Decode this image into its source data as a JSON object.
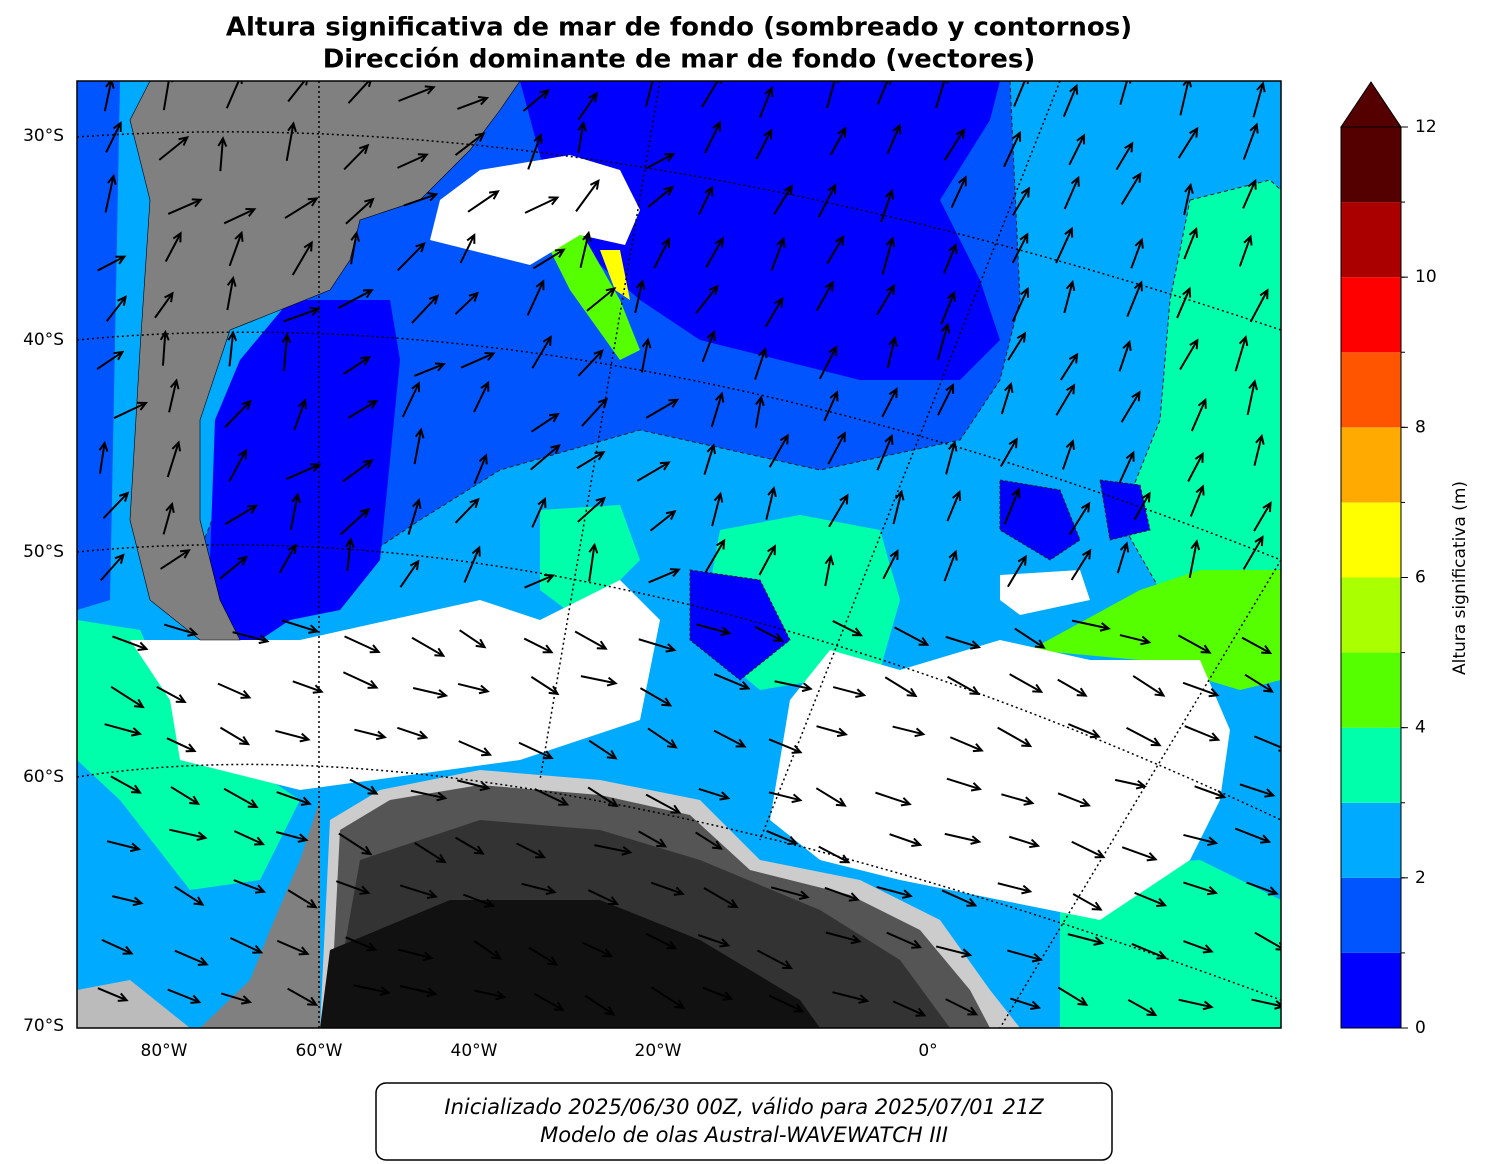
{
  "title": [
    "Altura significativa de mar de fondo (sombreado y contornos)",
    "Dirección dominante de mar de fondo (vectores)"
  ],
  "map": {
    "lat_labels": [
      "30°S",
      "40°S",
      "50°S",
      "60°S",
      "70°S"
    ],
    "lon_labels": [
      "80°W",
      "60°W",
      "40°W",
      "20°W",
      "0°"
    ]
  },
  "colorbar": {
    "label": "Altura significativa (m)",
    "levels": [
      0,
      1,
      2,
      3,
      4,
      5,
      6,
      7,
      8,
      9,
      10,
      11,
      12
    ],
    "colors": [
      "#0000ff",
      "#0055ff",
      "#00aaff",
      "#00ffaa",
      "#55ff00",
      "#aaff00",
      "#ffff00",
      "#ffaa00",
      "#ff5500",
      "#ff0000",
      "#aa0000",
      "#550000"
    ],
    "extend_color": "#550000",
    "ticks": [
      0,
      2,
      4,
      6,
      8,
      10,
      12
    ]
  },
  "footer": [
    "Inicializado 2025/06/30 00Z, válido para 2025/07/01 21Z",
    "Modelo de olas Austral-WAVEWATCH III"
  ]
}
